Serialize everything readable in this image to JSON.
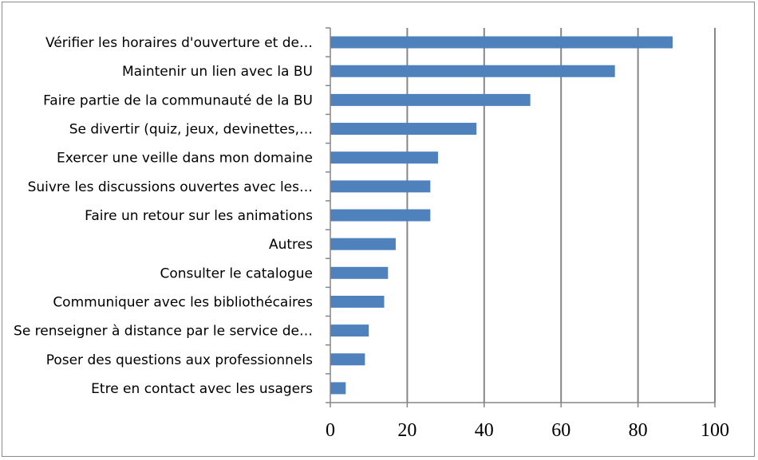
{
  "chart_data": {
    "type": "bar",
    "orientation": "horizontal",
    "categories": [
      "Vérifier les horaires d'ouverture et de…",
      "Maintenir un lien avec la BU",
      "Faire partie de la communauté de la BU",
      "Se divertir (quiz, jeux, devinettes,…",
      "Exercer une veille dans mon domaine",
      "Suivre les discussions ouvertes avec les…",
      "Faire un retour sur les animations",
      "Autres",
      "Consulter le catalogue",
      "Communiquer avec les bibliothécaires",
      "Se renseigner à distance par le service de…",
      "Poser des questions aux professionnels",
      "Etre en contact avec les usagers"
    ],
    "values": [
      89,
      74,
      52,
      38,
      28,
      26,
      26,
      17,
      15,
      14,
      10,
      9,
      4
    ],
    "xlim": [
      0,
      100
    ],
    "xticks": [
      0,
      20,
      40,
      60,
      80,
      100
    ],
    "grid": "vertical",
    "legend": "none",
    "colors": {
      "bar": "#4f81bd",
      "grid": "#868686",
      "axis": "#868686"
    }
  }
}
